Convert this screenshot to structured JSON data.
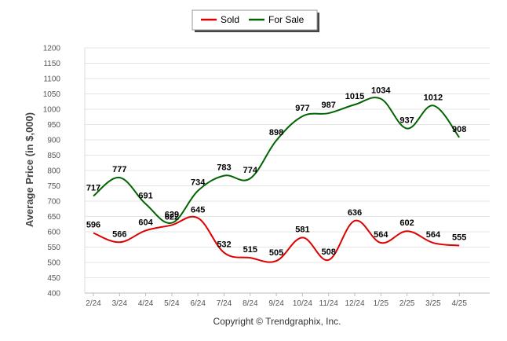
{
  "chart_data": {
    "type": "line",
    "categories": [
      "2/24",
      "3/24",
      "4/24",
      "5/24",
      "6/24",
      "7/24",
      "8/24",
      "9/24",
      "10/24",
      "11/24",
      "12/24",
      "1/25",
      "2/25",
      "3/25",
      "4/25"
    ],
    "series": [
      {
        "name": "Sold",
        "color": "#dd0000",
        "values": [
          596,
          566,
          604,
          622,
          645,
          532,
          515,
          505,
          581,
          508,
          636,
          564,
          602,
          564,
          555
        ]
      },
      {
        "name": "For Sale",
        "color": "#006400",
        "values": [
          717,
          777,
          691,
          629,
          734,
          783,
          774,
          898,
          977,
          987,
          1015,
          1034,
          937,
          1012,
          908
        ]
      }
    ],
    "ylabel": "Average Price (in $,000)",
    "ylim": [
      400,
      1200
    ],
    "yticks": [
      400,
      450,
      500,
      550,
      600,
      650,
      700,
      750,
      800,
      850,
      900,
      950,
      1000,
      1050,
      1100,
      1150,
      1200
    ],
    "grid": true,
    "legend_position": "top-center"
  },
  "footer": {
    "copyright": "Copyright © Trendgraphix, Inc."
  }
}
